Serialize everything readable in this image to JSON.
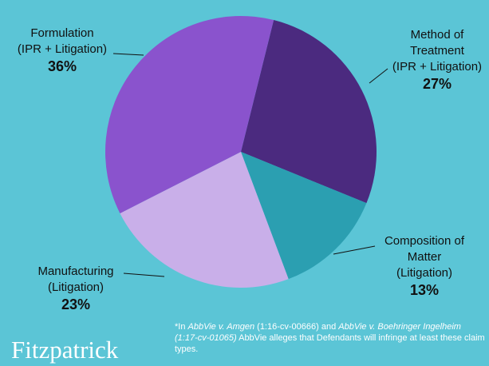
{
  "chart_data": {
    "type": "pie",
    "categories": [
      "Method of Treatment",
      "Composition of Matter",
      "Manufacturing",
      "Formulation"
    ],
    "sublabels": [
      "(IPR + Litigation)",
      "(Litigation)",
      "(Litigation)",
      "(IPR + Litigation)"
    ],
    "values": [
      27,
      13,
      23,
      36
    ],
    "value_labels": [
      "27%",
      "13%",
      "23%",
      "36%"
    ],
    "colors": [
      "#4b2a7f",
      "#2b9fb1",
      "#c9afe9",
      "#8a53cd"
    ],
    "footnote": [
      {
        "text": "*In "
      },
      {
        "text": "AbbVie v. Amgen",
        "italic": true
      },
      {
        "text": " (1:16-cv-00666)  and "
      },
      {
        "text": "AbbVie v. Boehringer Ingelheim (1:17-cv-01065)",
        "italic": true
      },
      {
        "text": "  AbbVie alleges that Defendants will infringe  at least these claim types."
      }
    ]
  },
  "logo": "Fitzpatrick"
}
